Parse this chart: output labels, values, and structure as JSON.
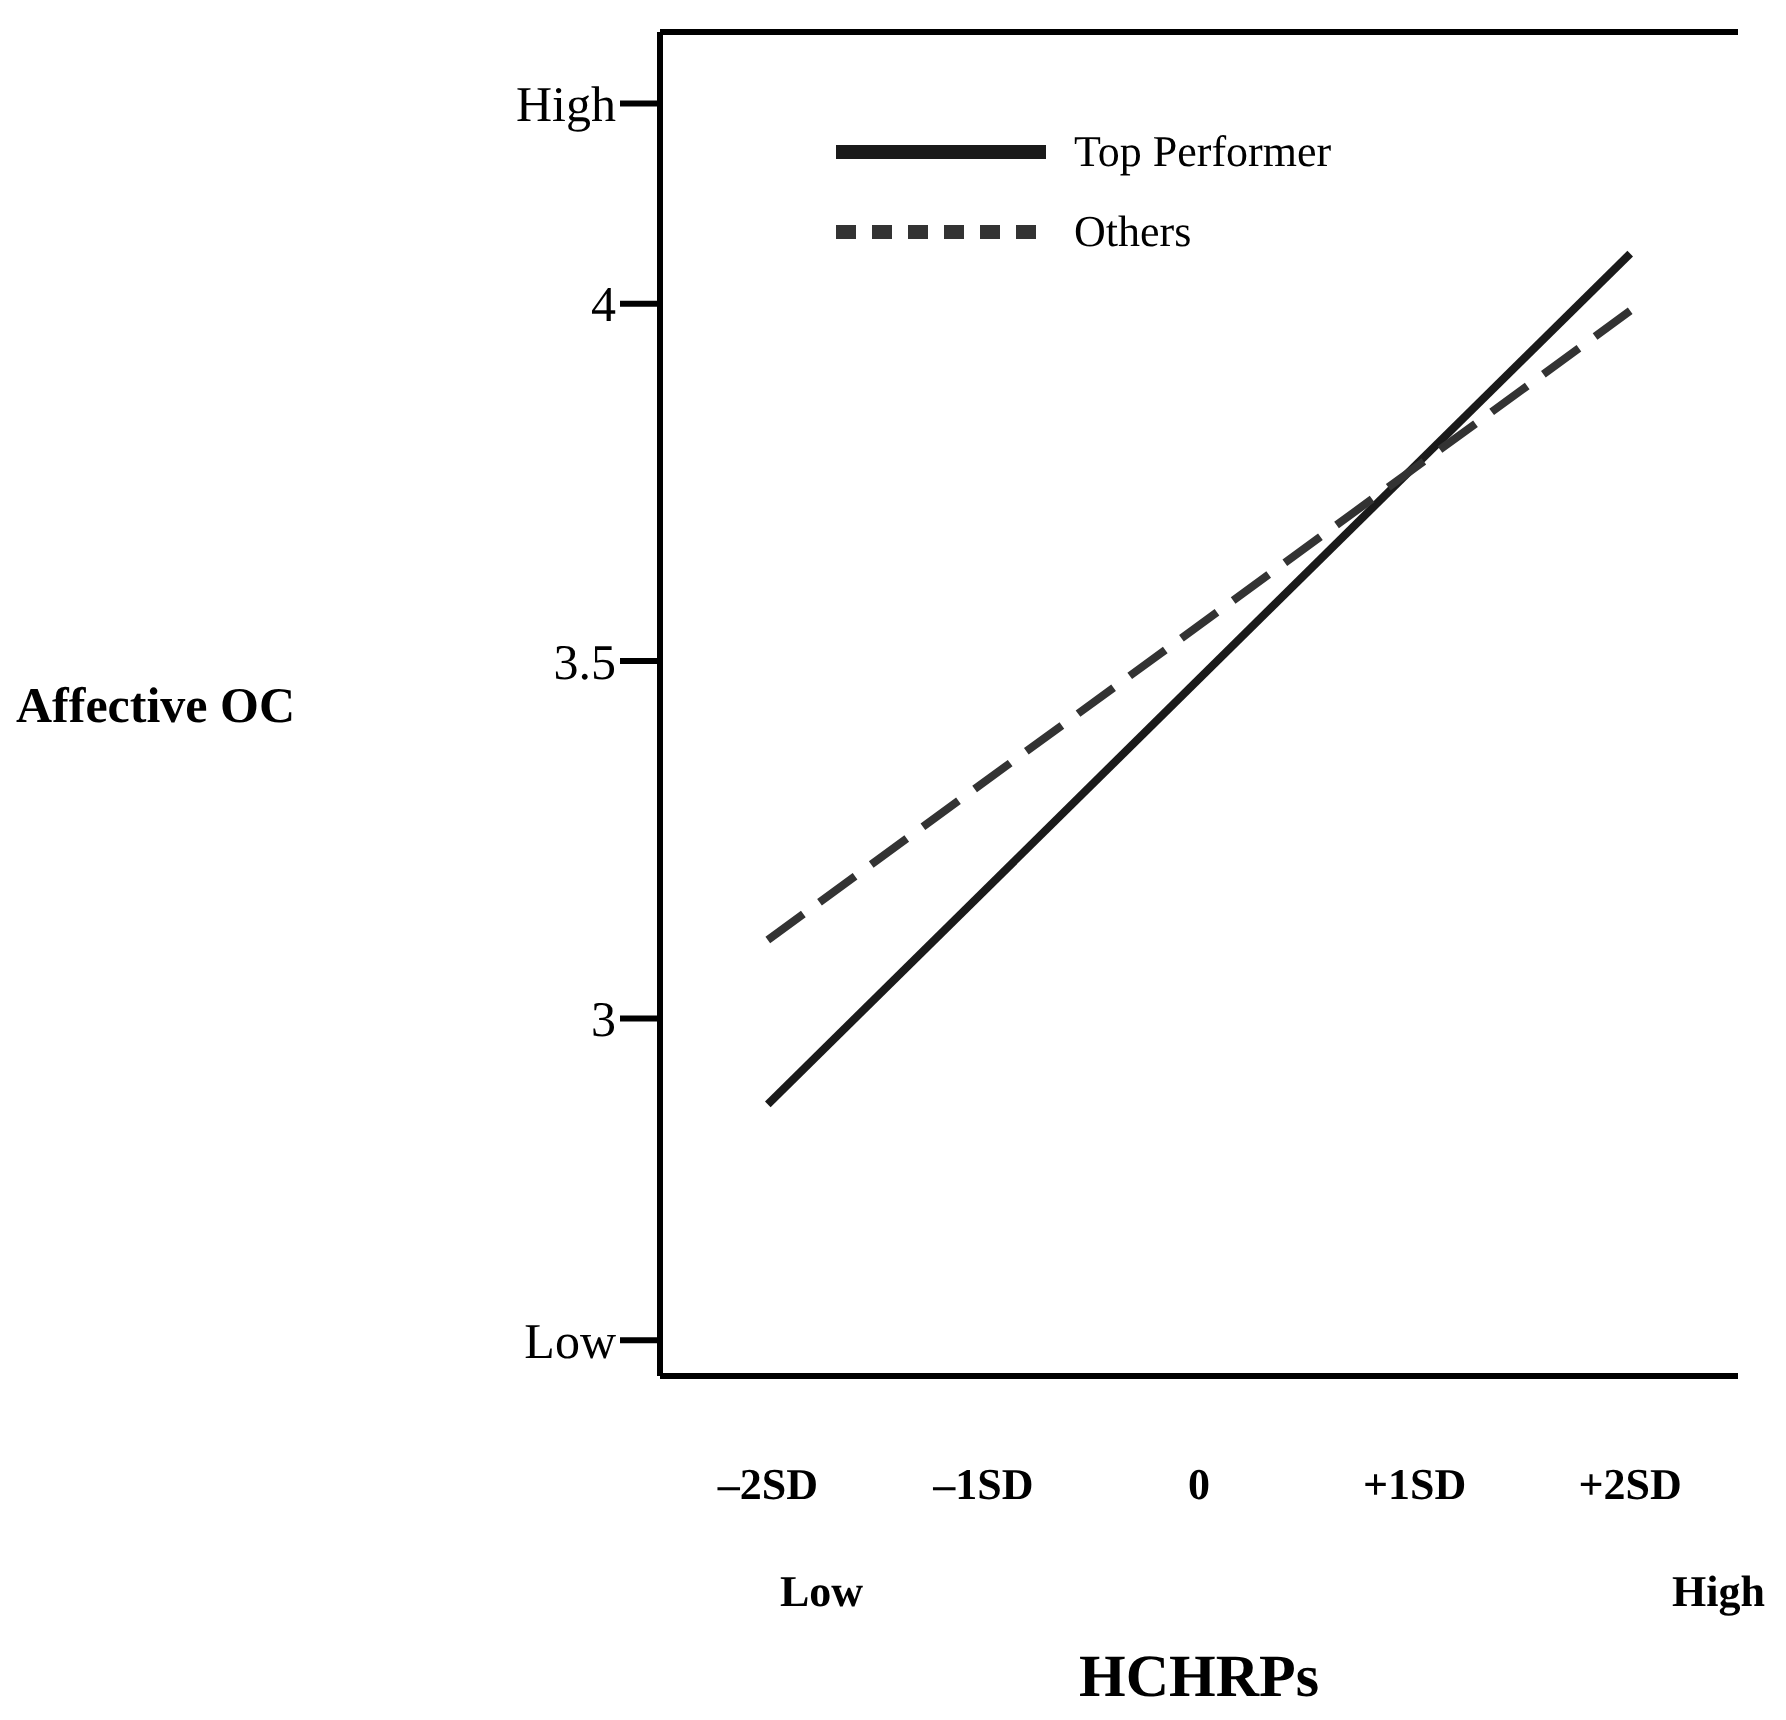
{
  "chart_data": {
    "type": "line",
    "xlabel": "HCHRPs",
    "ylabel": "Affective OC",
    "x": [
      -2,
      2
    ],
    "series": [
      {
        "name": "Top Performer",
        "color": "#1a1a1a",
        "values": [
          2.88,
          4.07
        ],
        "line_style": "solid"
      },
      {
        "name": "Others",
        "color": "#333333",
        "values": [
          3.11,
          3.99
        ],
        "line_style": "dashed"
      }
    ],
    "xlim": [
      -2.5,
      2.5
    ],
    "xticks": [
      {
        "value": -2,
        "label": "–2SD"
      },
      {
        "value": -1,
        "label": "–1SD"
      },
      0,
      {
        "value": 1,
        "label": "+1SD"
      },
      {
        "value": 2,
        "label": "+2SD"
      }
    ],
    "ylim": [
      2.5,
      4.38
    ],
    "yticks": [
      {
        "value": 2.55,
        "label": "Low"
      },
      3,
      3.5,
      4,
      {
        "value": 4.28,
        "label": "High"
      }
    ],
    "annotations": [
      "Low",
      "High"
    ],
    "legend": "top left",
    "grid": false,
    "marker": "none"
  }
}
